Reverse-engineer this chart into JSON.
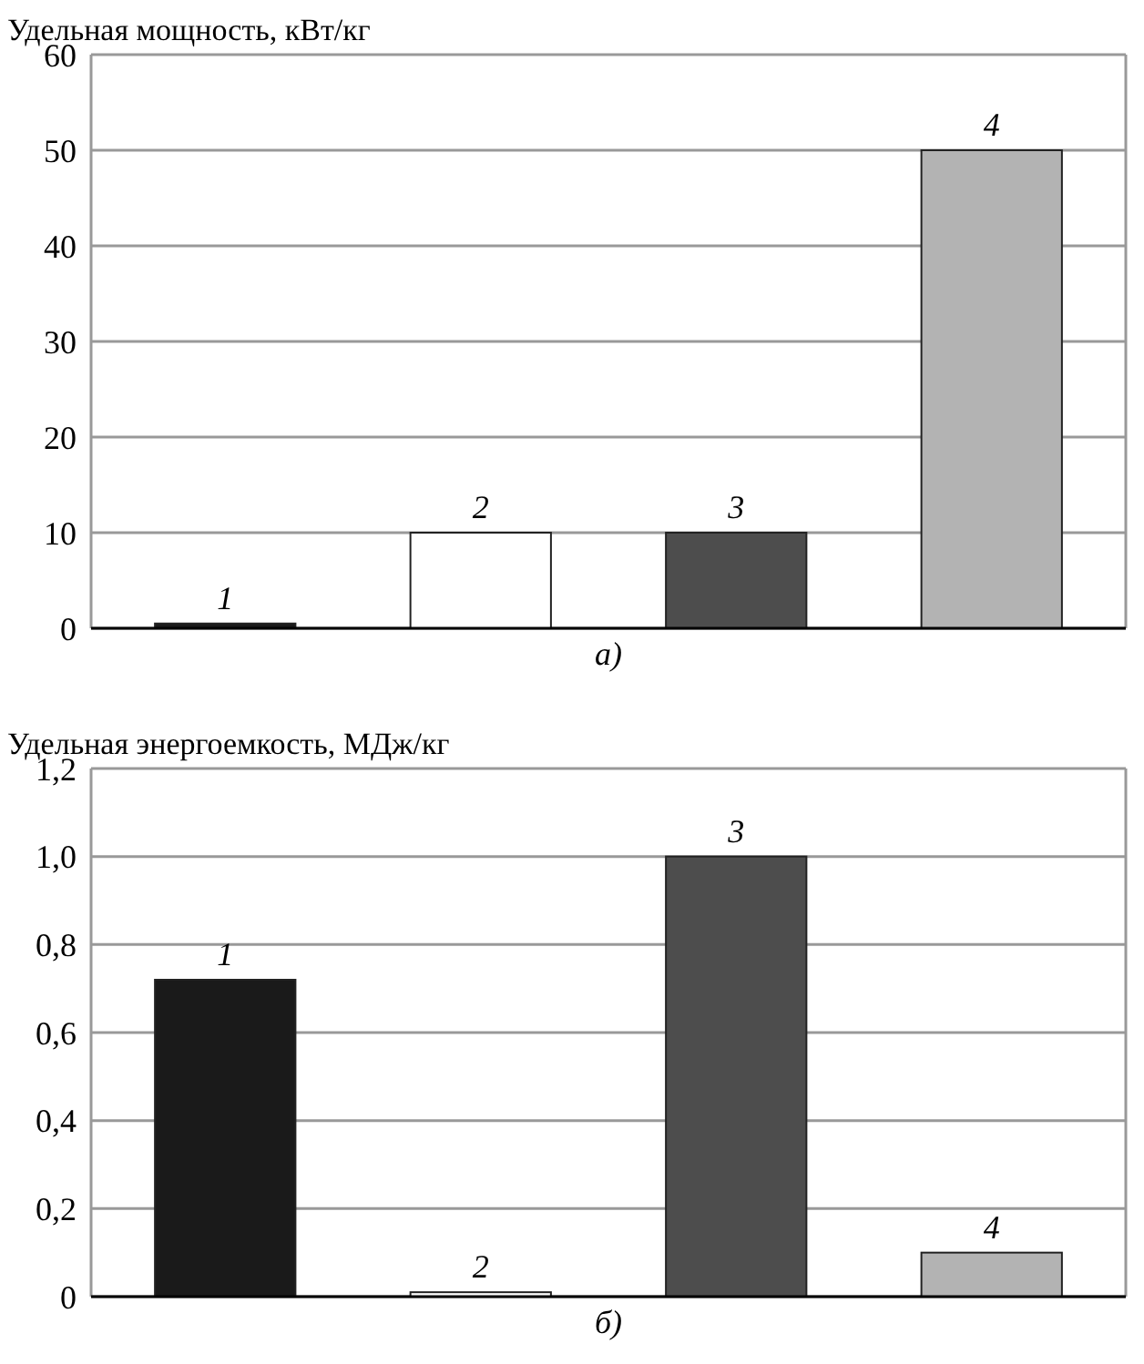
{
  "chart_data": [
    {
      "type": "bar",
      "ylabel": "Удельная мощность, кВт/кг",
      "categories": [
        "1",
        "2",
        "3",
        "4"
      ],
      "values": [
        0.5,
        10,
        10,
        50
      ],
      "colors": [
        "#1a1a1a",
        "#ffffff",
        "#4d4d4d",
        "#b3b3b3"
      ],
      "ylim": [
        0,
        60
      ],
      "yticks": [
        0,
        10,
        20,
        30,
        40,
        50,
        60
      ],
      "grid": "y",
      "annotations": [
        "а)"
      ]
    },
    {
      "type": "bar",
      "ylabel": "Удельная энергоемкость, МДж/кг",
      "categories": [
        "1",
        "2",
        "3",
        "4"
      ],
      "values": [
        0.72,
        0.01,
        1.0,
        0.1
      ],
      "colors": [
        "#1a1a1a",
        "#ffffff",
        "#4d4d4d",
        "#b3b3b3"
      ],
      "ylim": [
        0,
        1.2
      ],
      "yticks": [
        0,
        {
          "value": 0.2,
          "label": "0,2"
        },
        {
          "value": 0.4,
          "label": "0,4"
        },
        {
          "value": 0.6,
          "label": "0,6"
        },
        {
          "value": 0.8,
          "label": "0,8"
        },
        {
          "value": 1.0,
          "label": "1,0"
        },
        {
          "value": 1.2,
          "label": "1,2"
        }
      ],
      "grid": "y",
      "annotations": [
        "б)"
      ]
    }
  ]
}
